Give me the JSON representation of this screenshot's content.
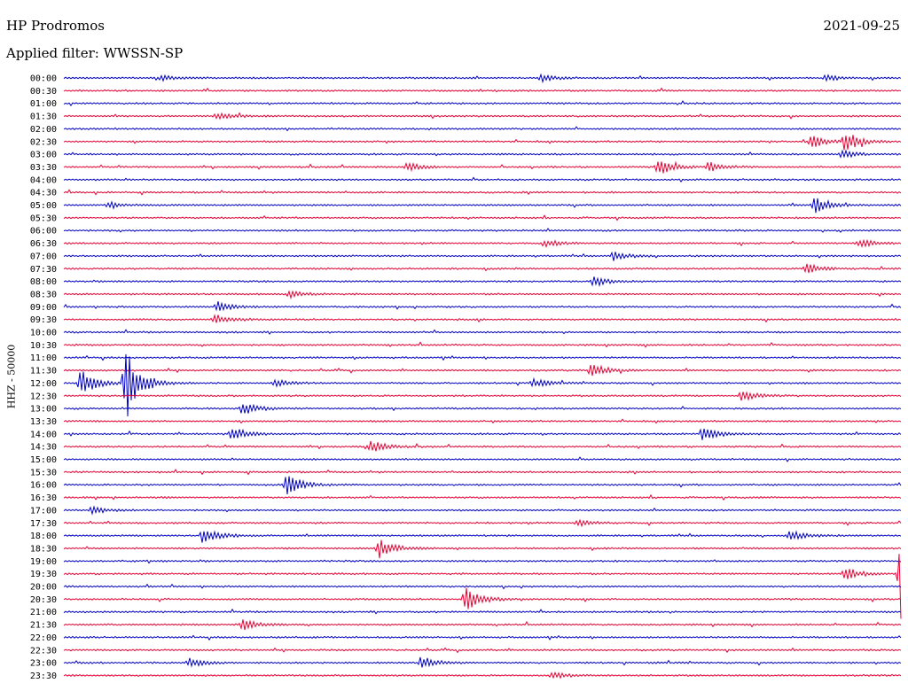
{
  "header": {
    "station": "HP Prodromos",
    "date": "2021-09-25",
    "filter": "Applied filter: WWSSN-SP"
  },
  "chart_data": {
    "type": "line",
    "title": "HP Prodromos",
    "date": "2021-09-25",
    "filter": "Applied filter: WWSSN-SP",
    "ylabel": "HHZ - 50000",
    "colors": [
      "#0000cc",
      "#ee0033"
    ],
    "row_labels": [
      "00:00",
      "00:30",
      "01:00",
      "01:30",
      "02:00",
      "02:30",
      "03:00",
      "03:30",
      "04:00",
      "04:30",
      "05:00",
      "05:30",
      "06:00",
      "06:30",
      "07:00",
      "07:30",
      "08:00",
      "08:30",
      "09:00",
      "09:30",
      "10:00",
      "10:30",
      "11:00",
      "11:30",
      "12:00",
      "12:30",
      "13:00",
      "13:30",
      "14:00",
      "14:30",
      "15:00",
      "15:30",
      "16:00",
      "16:30",
      "17:00",
      "17:30",
      "18:00",
      "18:30",
      "19:00",
      "19:30",
      "20:00",
      "20:30",
      "21:00",
      "21:30",
      "22:00",
      "22:30",
      "23:00",
      "23:30"
    ],
    "series_note": "",
    "events": [
      {
        "row": 0,
        "minute": 3.5,
        "amp": 3
      },
      {
        "row": 0,
        "minute": 17.1,
        "amp": 4
      },
      {
        "row": 0,
        "minute": 27.3,
        "amp": 3
      },
      {
        "row": 3,
        "minute": 5.5,
        "amp": 4
      },
      {
        "row": 5,
        "minute": 26.8,
        "amp": 8
      },
      {
        "row": 5,
        "minute": 28.0,
        "amp": 12
      },
      {
        "row": 6,
        "minute": 27.9,
        "amp": 5
      },
      {
        "row": 7,
        "minute": 12.3,
        "amp": 5
      },
      {
        "row": 7,
        "minute": 21.3,
        "amp": 10
      },
      {
        "row": 7,
        "minute": 23.1,
        "amp": 6
      },
      {
        "row": 10,
        "minute": 1.6,
        "amp": 4
      },
      {
        "row": 10,
        "minute": 26.9,
        "amp": 9
      },
      {
        "row": 13,
        "minute": 17.3,
        "amp": 4
      },
      {
        "row": 13,
        "minute": 28.5,
        "amp": 5
      },
      {
        "row": 14,
        "minute": 19.7,
        "amp": 5
      },
      {
        "row": 15,
        "minute": 26.6,
        "amp": 7
      },
      {
        "row": 16,
        "minute": 19.0,
        "amp": 6
      },
      {
        "row": 17,
        "minute": 8.1,
        "amp": 4
      },
      {
        "row": 18,
        "minute": 5.5,
        "amp": 7
      },
      {
        "row": 19,
        "minute": 5.4,
        "amp": 6
      },
      {
        "row": 23,
        "minute": 18.9,
        "amp": 9
      },
      {
        "row": 24,
        "minute": 0.6,
        "amp": 16
      },
      {
        "row": 24,
        "minute": 2.2,
        "amp": 46
      },
      {
        "row": 24,
        "minute": 7.6,
        "amp": 4
      },
      {
        "row": 24,
        "minute": 16.8,
        "amp": 5
      },
      {
        "row": 25,
        "minute": 24.3,
        "amp": 6
      },
      {
        "row": 26,
        "minute": 6.4,
        "amp": 8
      },
      {
        "row": 28,
        "minute": 6.0,
        "amp": 9
      },
      {
        "row": 28,
        "minute": 22.9,
        "amp": 9
      },
      {
        "row": 29,
        "minute": 11.0,
        "amp": 7
      },
      {
        "row": 32,
        "minute": 8.0,
        "amp": 13
      },
      {
        "row": 34,
        "minute": 1.0,
        "amp": 4
      },
      {
        "row": 35,
        "minute": 18.4,
        "amp": 4
      },
      {
        "row": 36,
        "minute": 5.0,
        "amp": 10
      },
      {
        "row": 36,
        "minute": 26.0,
        "amp": 6
      },
      {
        "row": 37,
        "minute": 11.3,
        "amp": 12
      },
      {
        "row": 39,
        "minute": 28.0,
        "amp": 8
      },
      {
        "row": 39,
        "minute": 30.0,
        "amp": 60
      },
      {
        "row": 41,
        "minute": 14.4,
        "amp": 18
      },
      {
        "row": 43,
        "minute": 6.4,
        "amp": 7
      },
      {
        "row": 46,
        "minute": 4.5,
        "amp": 5
      },
      {
        "row": 46,
        "minute": 12.8,
        "amp": 8
      },
      {
        "row": 47,
        "minute": 17.5,
        "amp": 4
      }
    ]
  }
}
